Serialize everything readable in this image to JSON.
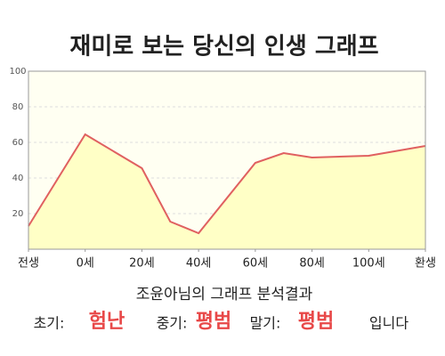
{
  "chart_data": {
    "type": "area",
    "title": "재미로 보는 당신의 인생 그래프",
    "x": [
      -20,
      0,
      20,
      30,
      40,
      60,
      70,
      80,
      100,
      120
    ],
    "values": [
      13,
      64.5,
      45.5,
      15.5,
      9,
      48.5,
      54,
      51.5,
      52.5,
      58
    ],
    "color": "#e06060",
    "fill_color": "#ffffc6",
    "background": "#fffff2",
    "xlim": [
      -20,
      120
    ],
    "ylim": [
      0,
      100
    ],
    "xticks": [
      {
        "value": -20,
        "label": "전생"
      },
      {
        "value": 0,
        "label": "0세"
      },
      {
        "value": 20,
        "label": "20세"
      },
      {
        "value": 40,
        "label": "40세"
      },
      {
        "value": 60,
        "label": "60세"
      },
      {
        "value": 80,
        "label": "80세"
      },
      {
        "value": 100,
        "label": "100세"
      },
      {
        "value": 120,
        "label": "환생"
      }
    ],
    "yticks": [
      20,
      40,
      60,
      80,
      100
    ],
    "grid": true
  },
  "summary": {
    "heading": "조윤아님의 그래프 분석결과",
    "items": [
      {
        "label": "초기:",
        "value": "험난"
      },
      {
        "label": "중기:",
        "value": "평범"
      },
      {
        "label": "말기:",
        "value": "평범"
      }
    ],
    "ending": "입니다"
  }
}
